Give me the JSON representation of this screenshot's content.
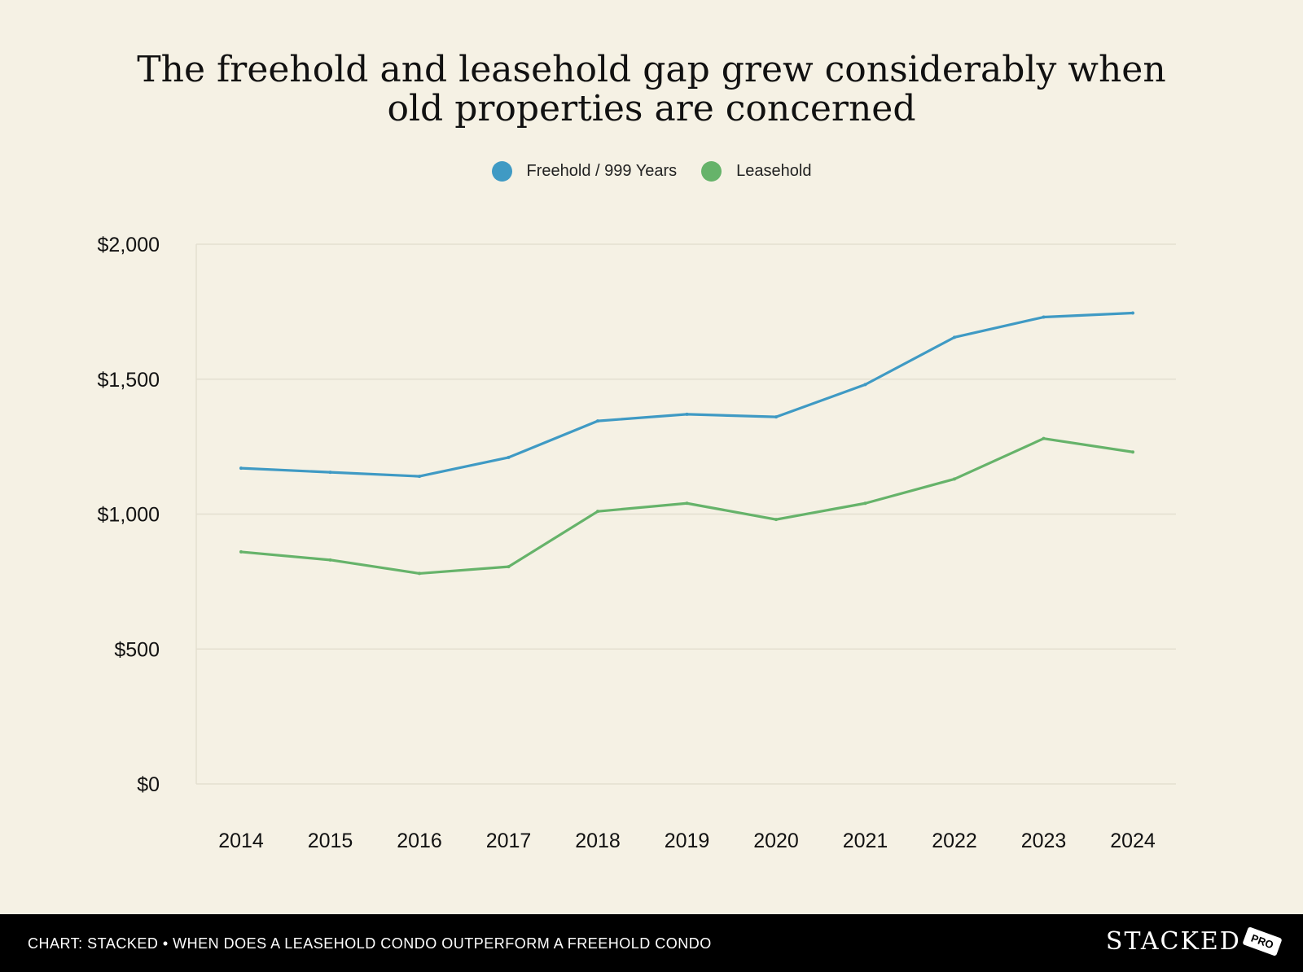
{
  "chart_data": {
    "type": "line",
    "title_lines": [
      "The freehold and leasehold gap grew considerably when",
      "old properties are concerned"
    ],
    "categories": [
      "2014",
      "2015",
      "2016",
      "2017",
      "2018",
      "2019",
      "2020",
      "2021",
      "2022",
      "2023",
      "2024"
    ],
    "series": [
      {
        "name": "Freehold / 999 Years",
        "color": "#3f9ac4",
        "values": [
          1170,
          1155,
          1140,
          1210,
          1345,
          1370,
          1360,
          1480,
          1655,
          1730,
          1745
        ]
      },
      {
        "name": "Leasehold",
        "color": "#66b36a",
        "values": [
          860,
          830,
          780,
          805,
          1010,
          1040,
          980,
          1040,
          1130,
          1280,
          1230
        ]
      }
    ],
    "yticks": [
      "$0",
      "$500",
      "$1,000",
      "$1,500",
      "$2,000"
    ],
    "ytick_values": [
      0,
      500,
      1000,
      1500,
      2000
    ],
    "ylim": [
      0,
      2000
    ],
    "grid": true,
    "legend_position": "top-center"
  },
  "footer": {
    "caption": "CHART: STACKED • WHEN DOES A LEASEHOLD CONDO OUTPERFORM A FREEHOLD CONDO",
    "logo_text": "STACKED",
    "logo_badge": "PRO"
  },
  "colors": {
    "background": "#f5f1e4",
    "freehold": "#3f9ac4",
    "leasehold": "#66b36a",
    "footer": "#000000"
  }
}
